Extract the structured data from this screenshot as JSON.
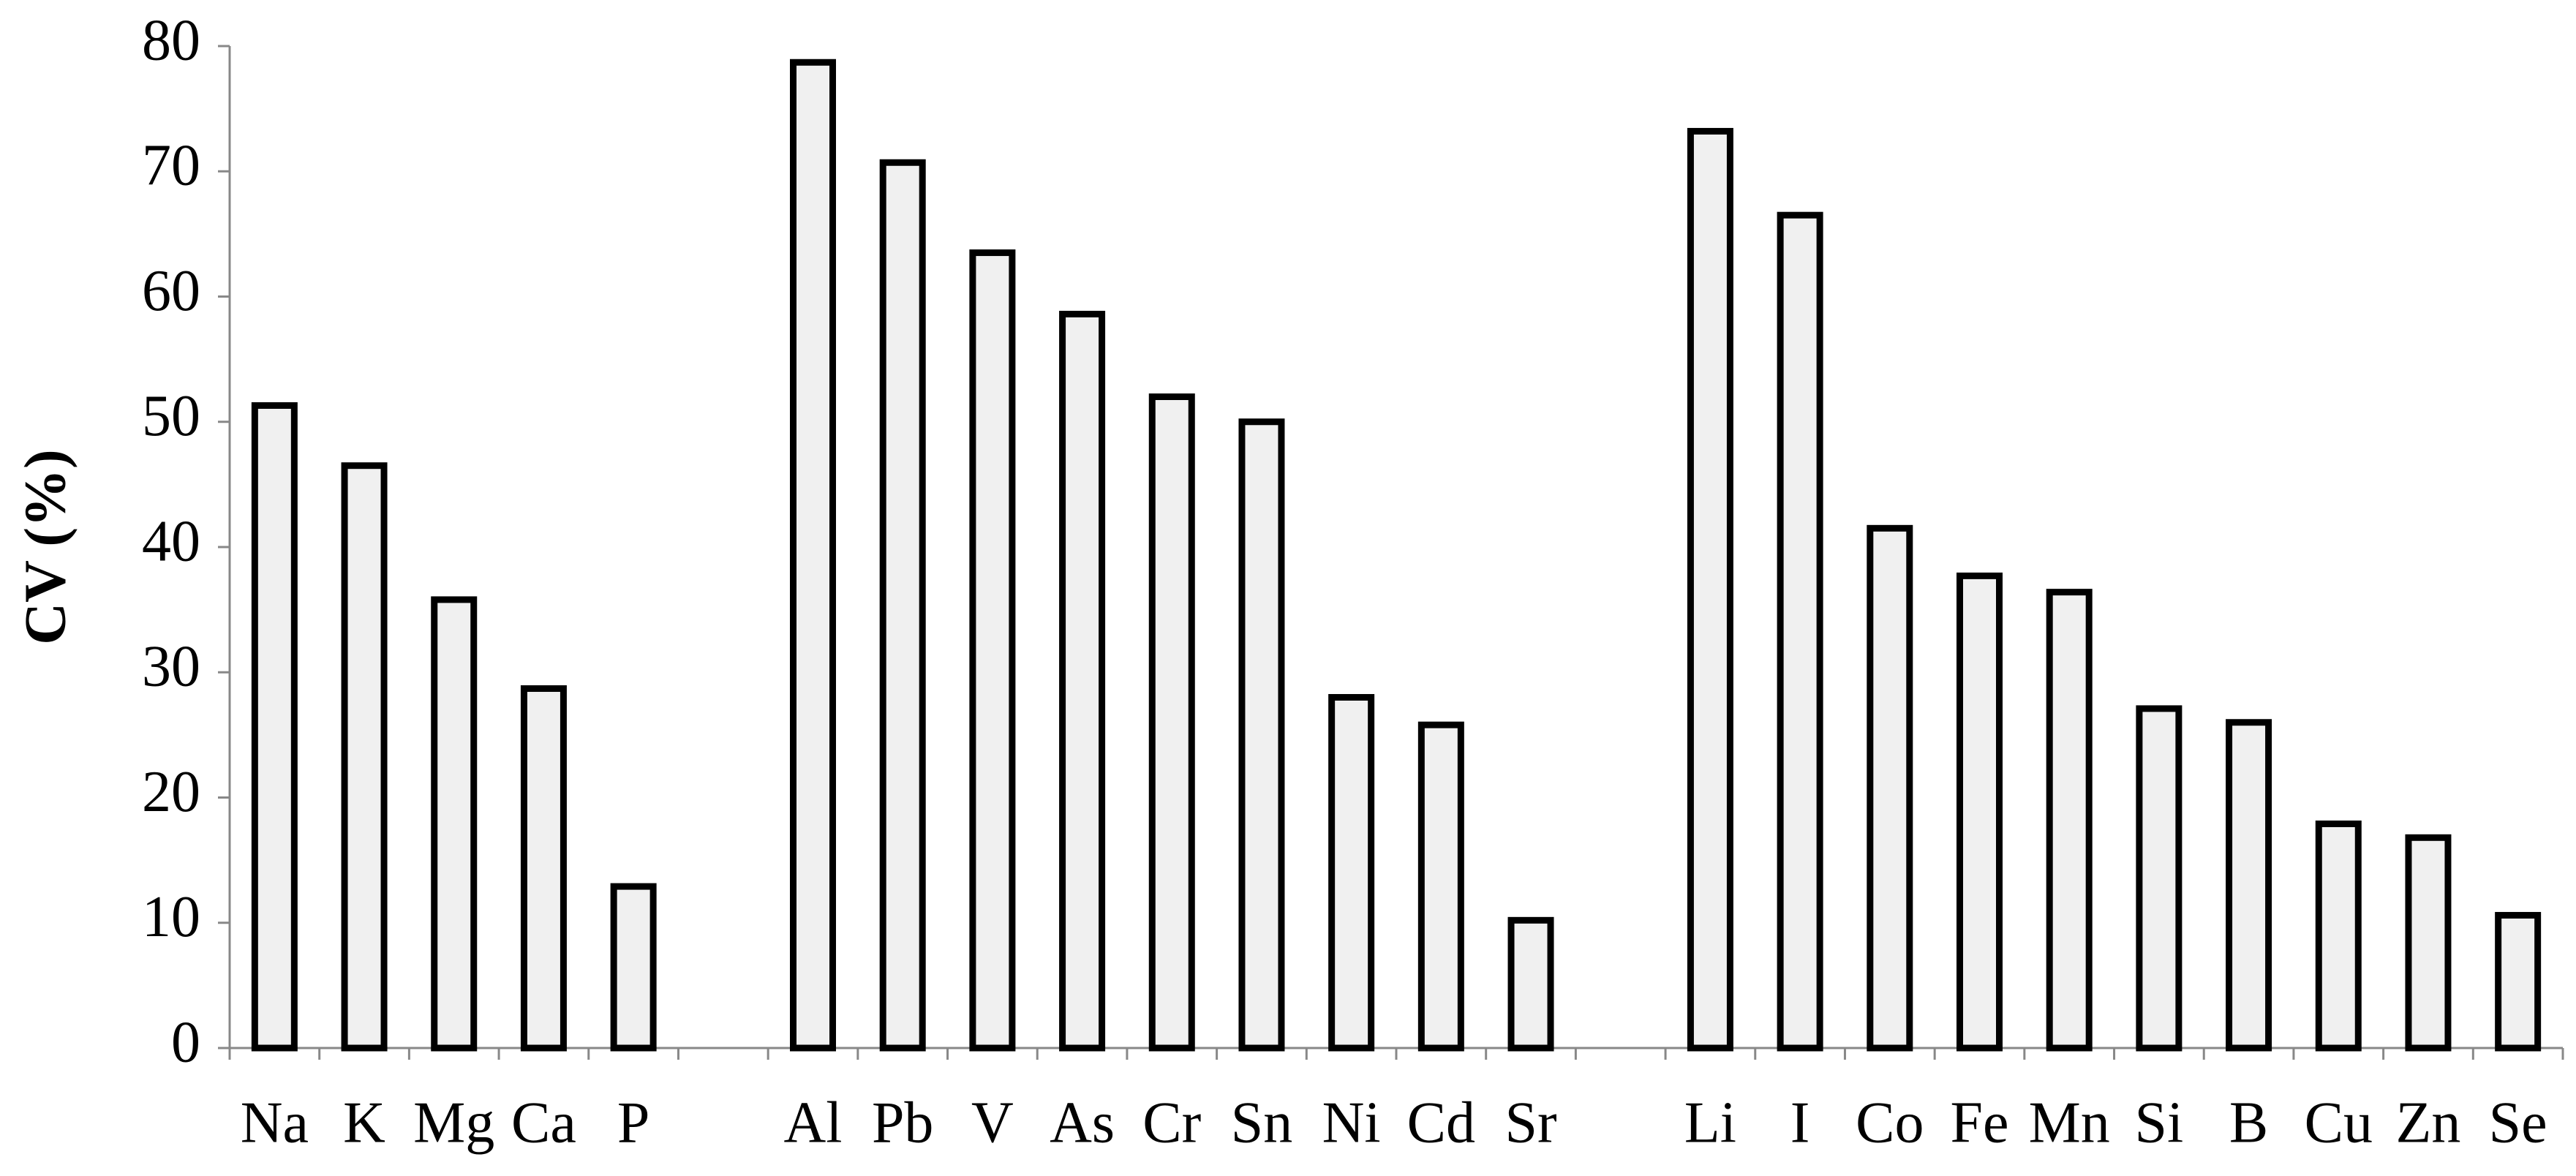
{
  "chart_data": {
    "type": "bar",
    "y_label": "CV (%)",
    "categories": [
      "Na",
      "K",
      "Mg",
      "Ca",
      "P",
      null,
      "Al",
      "Pb",
      "V",
      "As",
      "Cr",
      "Sn",
      "Ni",
      "Cd",
      "Sr",
      null,
      "Li",
      "I",
      "Co",
      "Fe",
      "Mn",
      "Si",
      "B",
      "Cu",
      "Zn",
      "Se"
    ],
    "values": [
      51.3,
      46.5,
      35.8,
      28.7,
      12.9,
      null,
      78.7,
      70.7,
      63.5,
      58.6,
      52.0,
      50.0,
      28.0,
      25.8,
      10.2,
      null,
      73.2,
      66.5,
      41.5,
      37.7,
      36.4,
      27.1,
      26.0,
      17.9,
      16.8,
      10.6
    ],
    "color": "#f0f0f0",
    "ylim": [
      0,
      80
    ],
    "yticks": [
      0,
      10,
      20,
      30,
      40,
      50,
      60,
      70,
      80
    ],
    "grid": false
  }
}
